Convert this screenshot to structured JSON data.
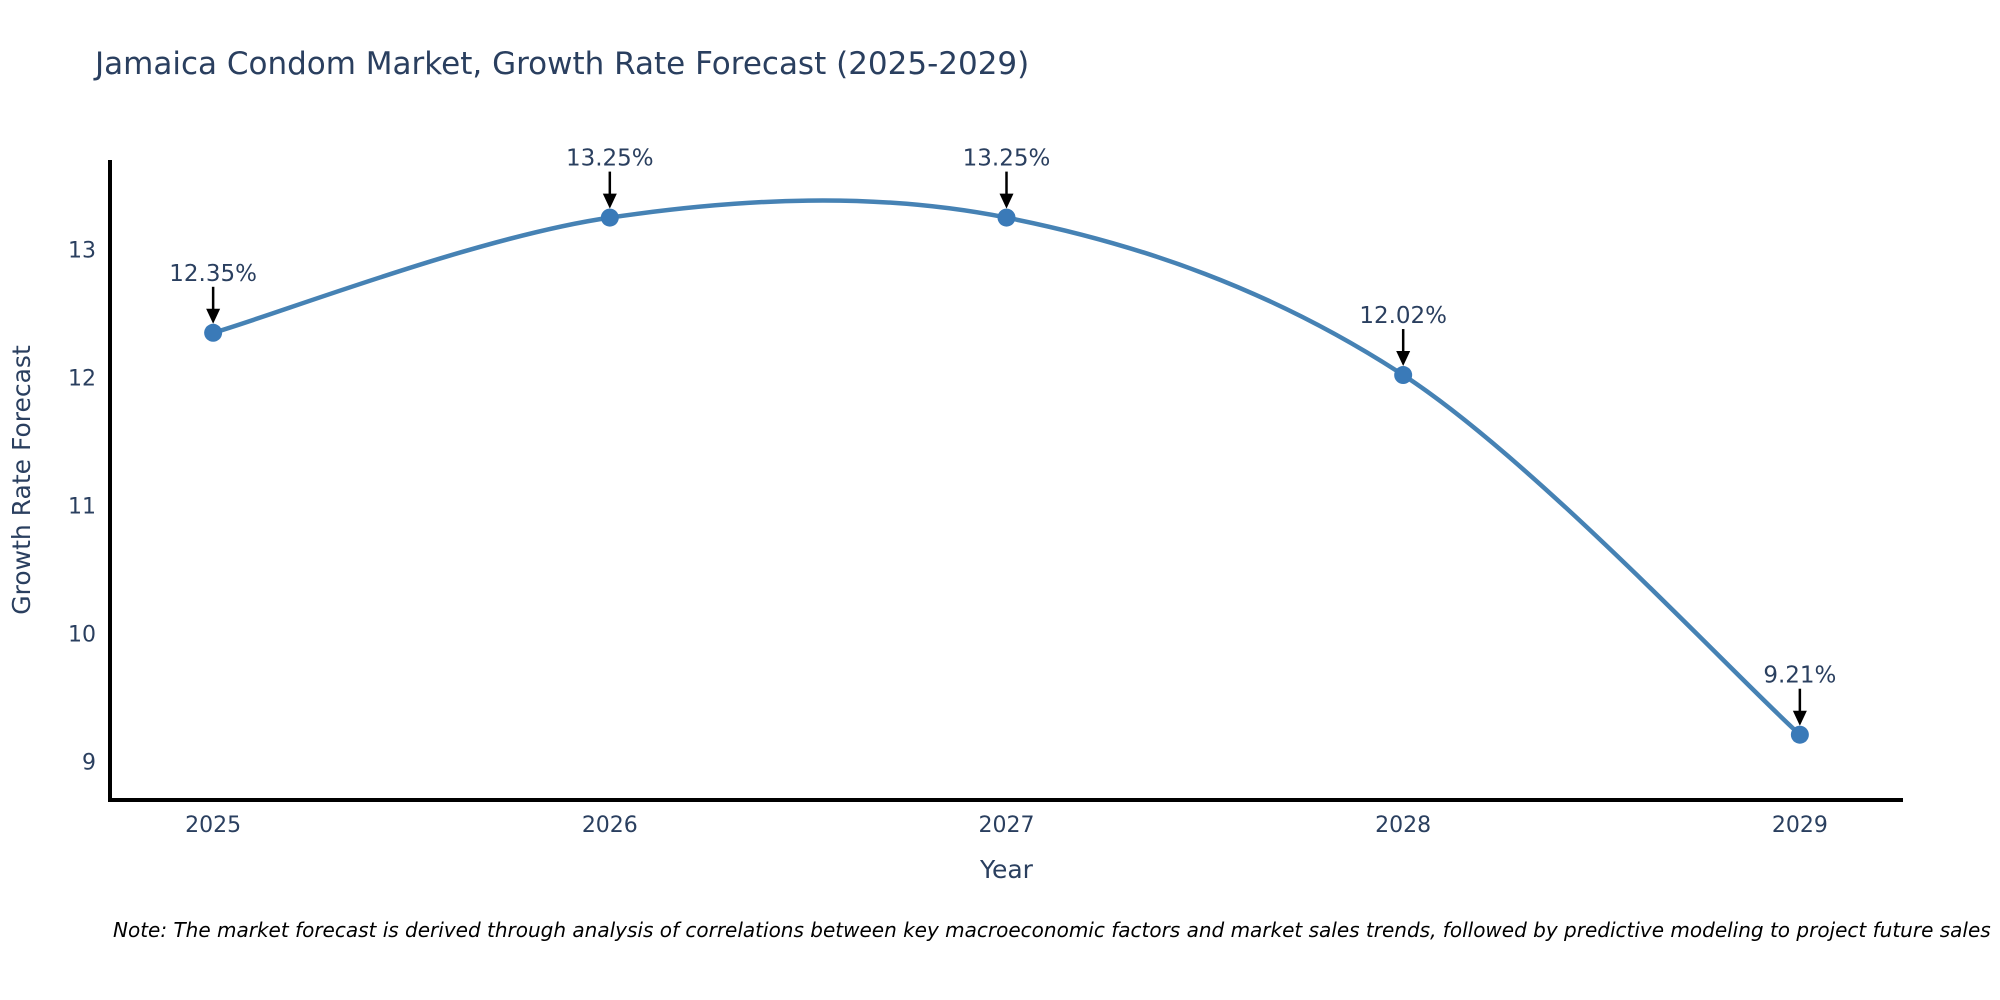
{
  "title": "Jamaica Condom Market, Growth Rate Forecast (2025-2029)",
  "note": "Note: The market forecast is derived through analysis of correlations between key macroeconomic factors and market sales trends, followed by predictive modeling to project future sales",
  "chart_data": {
    "type": "line",
    "line_shape": "spline",
    "title": "Jamaica Condom Market, Growth Rate Forecast (2025-2029)",
    "xlabel": "Year",
    "ylabel": "Growth Rate Forecast",
    "x": [
      2025,
      2026,
      2027,
      2028,
      2029
    ],
    "values": [
      12.35,
      13.25,
      13.25,
      12.02,
      9.21
    ],
    "labels": [
      "12.35%",
      "13.25%",
      "13.25%",
      "12.02%",
      "9.21%"
    ],
    "yticks": [
      9,
      10,
      11,
      12,
      13
    ],
    "xlim": [
      2024.74,
      2029.26
    ],
    "ylim": [
      8.7,
      13.7
    ],
    "grid": false,
    "legend": "none",
    "colors": {
      "line": "#4682b4",
      "marker": "#3a7ab8",
      "axis_line": "#000000",
      "tick_text": "#2a3f5f",
      "title_text": "#2a3f5f",
      "annotation_text": "#2a3f5f",
      "annotation_arrow": "#000000",
      "note_text": "#000000"
    }
  }
}
